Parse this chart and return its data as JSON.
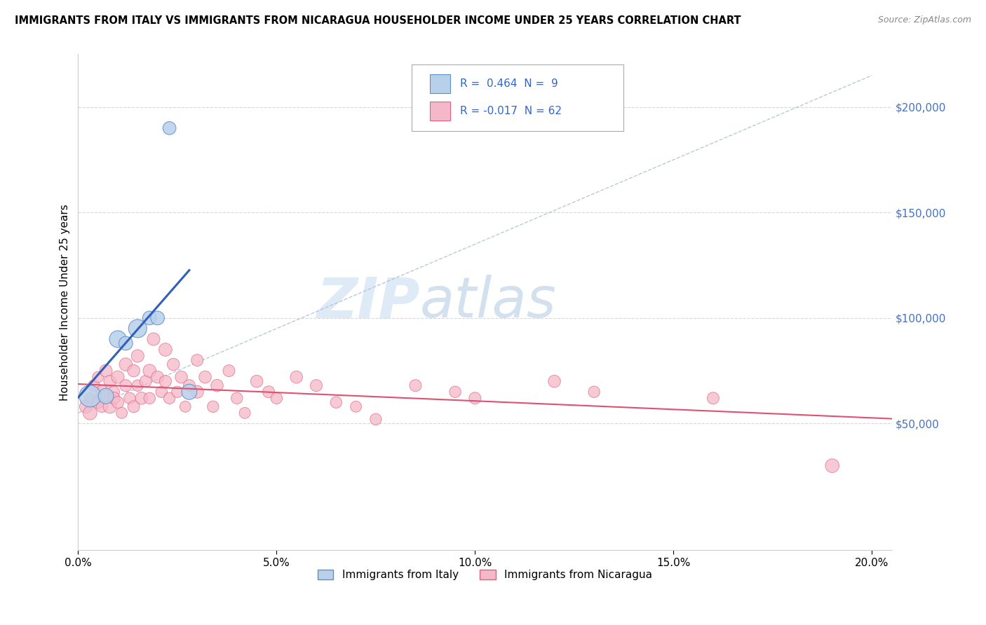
{
  "title": "IMMIGRANTS FROM ITALY VS IMMIGRANTS FROM NICARAGUA HOUSEHOLDER INCOME UNDER 25 YEARS CORRELATION CHART",
  "source": "Source: ZipAtlas.com",
  "ylabel": "Householder Income Under 25 years",
  "xlim": [
    0.0,
    0.205
  ],
  "ylim": [
    -10000,
    225000
  ],
  "ytick_vals": [
    50000,
    100000,
    150000,
    200000
  ],
  "ytick_labels": [
    "$50,000",
    "$100,000",
    "$150,000",
    "$200,000"
  ],
  "xtick_vals": [
    0.0,
    0.05,
    0.1,
    0.15,
    0.2
  ],
  "xtick_labels": [
    "0.0%",
    "5.0%",
    "10.0%",
    "15.0%",
    "20.0%"
  ],
  "r_italy": 0.464,
  "n_italy": 9,
  "r_nicaragua": -0.017,
  "n_nicaragua": 62,
  "italy_fill_color": "#b8d0ea",
  "nicaragua_fill_color": "#f5b8c8",
  "italy_edge_color": "#6090c8",
  "nicaragua_edge_color": "#e06080",
  "italy_line_color": "#3060b8",
  "nicaragua_line_color": "#e05070",
  "diagonal_color": "#aabbd0",
  "grid_color": "#d8d8d8",
  "watermark_color": "#d5e8f5",
  "italy_x": [
    0.003,
    0.007,
    0.01,
    0.012,
    0.015,
    0.018,
    0.02,
    0.023,
    0.028
  ],
  "italy_y": [
    63000,
    63000,
    90000,
    88000,
    95000,
    100000,
    100000,
    190000,
    65000
  ],
  "italy_sizes": [
    500,
    250,
    300,
    200,
    350,
    200,
    200,
    180,
    250
  ],
  "nicaragua_x": [
    0.002,
    0.003,
    0.003,
    0.004,
    0.005,
    0.005,
    0.006,
    0.006,
    0.007,
    0.007,
    0.008,
    0.008,
    0.009,
    0.009,
    0.01,
    0.01,
    0.011,
    0.012,
    0.012,
    0.013,
    0.014,
    0.014,
    0.015,
    0.015,
    0.016,
    0.017,
    0.018,
    0.018,
    0.019,
    0.02,
    0.021,
    0.022,
    0.022,
    0.023,
    0.024,
    0.025,
    0.026,
    0.027,
    0.028,
    0.03,
    0.03,
    0.032,
    0.034,
    0.035,
    0.038,
    0.04,
    0.042,
    0.045,
    0.048,
    0.05,
    0.055,
    0.06,
    0.065,
    0.07,
    0.075,
    0.085,
    0.095,
    0.1,
    0.12,
    0.13,
    0.16,
    0.19
  ],
  "nicaragua_y": [
    58000,
    62000,
    55000,
    68000,
    60000,
    72000,
    65000,
    58000,
    75000,
    63000,
    70000,
    58000,
    65000,
    62000,
    60000,
    72000,
    55000,
    78000,
    68000,
    62000,
    75000,
    58000,
    82000,
    68000,
    62000,
    70000,
    75000,
    62000,
    90000,
    72000,
    65000,
    85000,
    70000,
    62000,
    78000,
    65000,
    72000,
    58000,
    68000,
    65000,
    80000,
    72000,
    58000,
    68000,
    75000,
    62000,
    55000,
    70000,
    65000,
    62000,
    72000,
    68000,
    60000,
    58000,
    52000,
    68000,
    65000,
    62000,
    70000,
    65000,
    62000,
    30000
  ],
  "nicaragua_sizes": [
    180,
    120,
    200,
    150,
    160,
    130,
    180,
    140,
    170,
    150,
    160,
    190,
    140,
    160,
    150,
    170,
    130,
    180,
    150,
    140,
    160,
    150,
    170,
    140,
    160,
    150,
    180,
    140,
    170,
    160,
    140,
    180,
    150,
    140,
    160,
    140,
    160,
    130,
    150,
    170,
    150,
    160,
    140,
    160,
    150,
    140,
    130,
    160,
    150,
    140,
    160,
    150,
    140,
    130,
    140,
    150,
    140,
    150,
    160,
    140,
    150,
    200
  ]
}
